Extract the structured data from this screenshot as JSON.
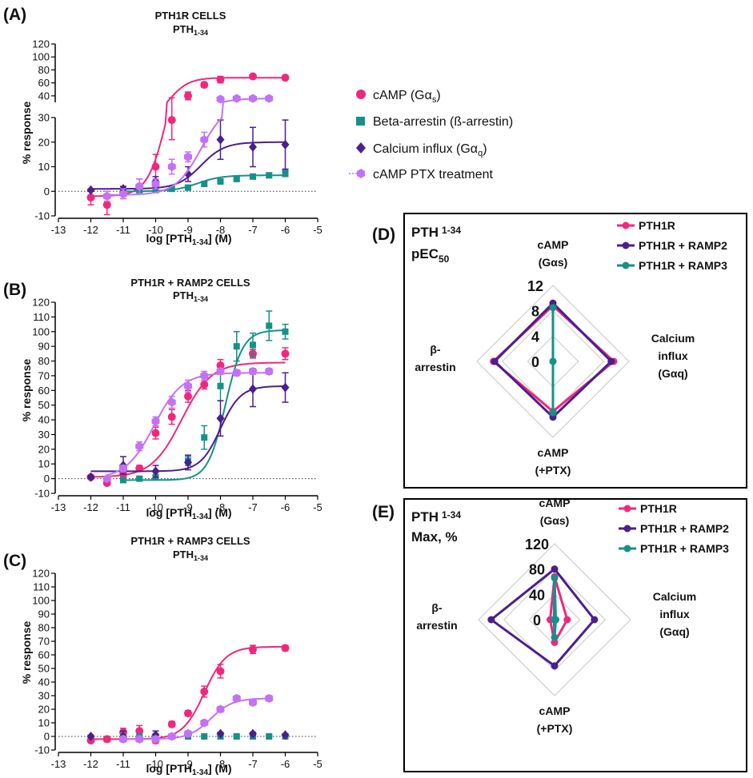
{
  "figure": {
    "panels": {
      "A": {
        "label": "(A)",
        "title": "PTH1R CELLS"
      },
      "B": {
        "label": "(B)",
        "title": "PTH1R + RAMP2 CELLS"
      },
      "C": {
        "label": "(C)",
        "title": "PTH1R + RAMP3 CELLS"
      },
      "D": {
        "label": "(D)"
      },
      "E": {
        "label": "(E)"
      }
    }
  },
  "colors": {
    "pink": "#f0287c",
    "teal": "#15918a",
    "purple": "#4b1f8c",
    "lilac": "#c471f5"
  },
  "legend_main": [
    {
      "label": "cAMP (Gα",
      "sub": "s",
      "tail": ")",
      "color": "#f0287c",
      "marker": "circle"
    },
    {
      "label": "Beta-arrestin (ß-arrestin)",
      "sub": "",
      "tail": "",
      "color": "#15918a",
      "marker": "square"
    },
    {
      "label": "Calcium influx (Gα",
      "sub": "q",
      "tail": ")",
      "color": "#4b1f8c",
      "marker": "diamond"
    },
    {
      "label": "cAMP PTX treatment",
      "sub": "",
      "tail": "",
      "color": "#c471f5",
      "marker": "hexagon"
    }
  ],
  "chart_data": [
    {
      "id": "A",
      "type": "scatter",
      "title": "PTH1R CELLS",
      "subtitle": "PTH1-34",
      "xlabel": "log [PTH1-34] (M)",
      "ylabel": "% response",
      "xlim": [
        -13,
        -5
      ],
      "ylim_lower": [
        -10,
        30
      ],
      "ylim_upper": [
        30,
        120
      ],
      "xticks": [
        "-13",
        "-12",
        "-11",
        "-10",
        "-9",
        "-8",
        "-7",
        "-6",
        "-5"
      ],
      "yticks_lower": [
        "-10",
        "0",
        "10",
        "20",
        "30"
      ],
      "yticks_upper": [
        "40",
        "60",
        "80",
        "100",
        "120"
      ],
      "series": [
        {
          "name": "cAMP (Gαs)",
          "color": "pink",
          "marker": "circle",
          "x": [
            -12,
            -11.5,
            -11,
            -10.5,
            -10,
            -9.5,
            -9,
            -8.5,
            -8,
            -7,
            -6
          ],
          "y": [
            -2.5,
            -5.5,
            -1,
            2,
            10,
            29,
            40,
            57,
            65,
            70,
            68
          ],
          "err": [
            3,
            4,
            2,
            3,
            5,
            8,
            6,
            4,
            5,
            3,
            2
          ],
          "fit": {
            "bottom": -2,
            "top": 68,
            "ec50": -9.6,
            "h": 1.4
          }
        },
        {
          "name": "Beta-arrestin (ß-arrestin)",
          "color": "teal",
          "marker": "square",
          "x": [
            -11,
            -10.5,
            -10,
            -9.5,
            -9,
            -8.5,
            -8,
            -7.5,
            -7,
            -6.5,
            -6
          ],
          "y": [
            0,
            0,
            0.5,
            1,
            1.5,
            3,
            4,
            5,
            6,
            6.5,
            7.5
          ],
          "err": [
            0.5,
            0.5,
            0.5,
            0.5,
            0.5,
            0.8,
            0.8,
            0.8,
            1,
            1,
            1.5
          ],
          "fit": {
            "bottom": 0,
            "top": 6.5,
            "ec50": -8.7,
            "h": 1.2
          }
        },
        {
          "name": "Calcium influx (Gαq)",
          "color": "purple",
          "marker": "diamond",
          "x": [
            -12,
            -11,
            -10,
            -9,
            -8,
            -7,
            -6
          ],
          "y": [
            0.5,
            1,
            4,
            7,
            21,
            18,
            19
          ],
          "err": [
            0.5,
            1,
            2,
            3,
            8,
            8,
            10
          ],
          "fit": {
            "bottom": 1,
            "top": 20,
            "ec50": -8.6,
            "h": 1.2
          }
        },
        {
          "name": "cAMP PTX treatment",
          "color": "lilac",
          "marker": "hexagon",
          "x": [
            -11.5,
            -11,
            -10.5,
            -10,
            -9.5,
            -9,
            -8.5,
            -8,
            -7.5,
            -7,
            -6.5
          ],
          "y": [
            -2,
            -1,
            2,
            3,
            10,
            14,
            21,
            35,
            36,
            36,
            36
          ],
          "err": [
            2,
            2,
            3,
            2,
            3,
            2,
            3,
            2,
            1,
            1,
            1
          ],
          "fit": {
            "bottom": -1.5,
            "top": 36,
            "ec50": -8.6,
            "h": 1.1
          }
        }
      ]
    },
    {
      "id": "B",
      "type": "scatter",
      "title": "PTH1R + RAMP2 CELLS",
      "subtitle": "PTH1-34",
      "xlabel": "log [PTH1-34] (M)",
      "ylabel": "% response",
      "xlim": [
        -13,
        -5
      ],
      "ylim": [
        -10,
        120
      ],
      "xticks": [
        "-13",
        "-12",
        "-11",
        "-10",
        "-9",
        "-8",
        "-7",
        "-6",
        "-5"
      ],
      "yticks": [
        "-10",
        "0",
        "10",
        "20",
        "30",
        "40",
        "50",
        "60",
        "70",
        "80",
        "90",
        "100",
        "110",
        "120"
      ],
      "series": [
        {
          "name": "cAMP (Gαs)",
          "color": "pink",
          "marker": "circle",
          "x": [
            -12,
            -11.5,
            -11,
            -10.5,
            -10,
            -9.5,
            -9,
            -8.5,
            -8,
            -7,
            -6
          ],
          "y": [
            1,
            -3,
            3,
            7,
            31,
            42,
            56,
            64,
            77,
            85,
            85
          ],
          "err": [
            1,
            1,
            2,
            2,
            4,
            5,
            4,
            3,
            4,
            3,
            4
          ],
          "fit": {
            "bottom": 1,
            "top": 79,
            "ec50": -9.2,
            "h": 0.95
          }
        },
        {
          "name": "Beta-arrestin (ß-arrestin)",
          "color": "teal",
          "marker": "square",
          "x": [
            -11,
            -10.5,
            -10,
            -9,
            -8.5,
            -8,
            -7.5,
            -7,
            -6.5,
            -6
          ],
          "y": [
            -1,
            0,
            1,
            12,
            28,
            63,
            90,
            91,
            104,
            100
          ],
          "err": [
            1,
            1,
            1,
            3,
            8,
            10,
            10,
            8,
            10,
            5
          ],
          "fit": {
            "bottom": -1,
            "top": 101,
            "ec50": -7.85,
            "h": 1.6
          }
        },
        {
          "name": "Calcium influx (Gαq)",
          "color": "purple",
          "marker": "diamond",
          "x": [
            -12,
            -11,
            -10,
            -9,
            -8,
            -7,
            -6
          ],
          "y": [
            1,
            9,
            5,
            11,
            41,
            61,
            62
          ],
          "err": [
            1,
            6,
            4,
            5,
            12,
            12,
            10
          ],
          "fit": {
            "bottom": 5,
            "top": 63,
            "ec50": -8.0,
            "h": 1.4
          }
        },
        {
          "name": "cAMP PTX treatment",
          "color": "lilac",
          "marker": "hexagon",
          "x": [
            -11.5,
            -11,
            -10.5,
            -10,
            -9.5,
            -9,
            -8.5,
            -8,
            -7.5,
            -7,
            -6.5
          ],
          "y": [
            0,
            7,
            22,
            39,
            52,
            63,
            70,
            73,
            72,
            73,
            73
          ],
          "err": [
            1,
            2,
            3,
            3,
            4,
            4,
            3,
            2,
            2,
            2,
            2
          ],
          "fit": {
            "bottom": 0,
            "top": 72,
            "ec50": -10.05,
            "h": 1.0
          }
        }
      ]
    },
    {
      "id": "C",
      "type": "scatter",
      "title": "PTH1R + RAMP3 CELLS",
      "subtitle": "PTH1-34",
      "xlabel": "log [PTH1-34] (M)",
      "ylabel": "% response",
      "xlim": [
        -13,
        -5
      ],
      "ylim": [
        -10,
        120
      ],
      "xticks": [
        "-13",
        "-12",
        "-11",
        "-10",
        "-9",
        "-8",
        "-7",
        "-6",
        "-5"
      ],
      "yticks": [
        "-10",
        "0",
        "10",
        "20",
        "30",
        "40",
        "50",
        "60",
        "70",
        "80",
        "90",
        "100",
        "110",
        "120"
      ],
      "series": [
        {
          "name": "cAMP (Gαs)",
          "color": "pink",
          "marker": "circle",
          "x": [
            -12,
            -11.5,
            -11,
            -10.5,
            -10,
            -9.5,
            -9,
            -8.5,
            -8,
            -7,
            -6
          ],
          "y": [
            -3,
            -2,
            3,
            4,
            -3,
            9,
            17,
            33,
            48,
            64,
            65
          ],
          "err": [
            1,
            2,
            3,
            4,
            2,
            2,
            2,
            4,
            5,
            3,
            2
          ],
          "fit": {
            "bottom": -2,
            "top": 66,
            "ec50": -8.5,
            "h": 1.3
          }
        },
        {
          "name": "Beta-arrestin (ß-arrestin)",
          "color": "teal",
          "marker": "square",
          "x": [
            -11,
            -10.5,
            -10,
            -9.5,
            -9,
            -8.5,
            -8,
            -7.5,
            -7,
            -6.5,
            -6
          ],
          "y": [
            0,
            0,
            0,
            0,
            0,
            0,
            0,
            0,
            0,
            0,
            0
          ],
          "err": [
            0.5,
            0.5,
            0.5,
            0.5,
            0.5,
            0.5,
            0.5,
            0.5,
            0.5,
            0.5,
            0.5
          ],
          "fit": null
        },
        {
          "name": "Calcium influx (Gαq)",
          "color": "purple",
          "marker": "diamond",
          "x": [
            -12,
            -11,
            -10,
            -9,
            -8,
            -7,
            -6
          ],
          "y": [
            0,
            0,
            1,
            2,
            2,
            2,
            1
          ],
          "err": [
            1,
            4,
            3,
            2,
            1,
            1,
            1
          ],
          "fit": null
        },
        {
          "name": "cAMP PTX treatment",
          "color": "lilac",
          "marker": "hexagon",
          "x": [
            -11,
            -10.5,
            -10,
            -9.5,
            -9,
            -8.5,
            -8,
            -7.5,
            -7,
            -6.5
          ],
          "y": [
            -2,
            -2,
            -2,
            0,
            2,
            10,
            20,
            28,
            25,
            28
          ],
          "err": [
            2,
            2,
            2,
            2,
            2,
            2,
            2,
            2,
            2,
            2
          ],
          "fit": {
            "bottom": -2,
            "top": 28,
            "ec50": -8.3,
            "h": 1.3
          }
        }
      ]
    },
    {
      "id": "D",
      "type": "radar",
      "title_main": "PTH",
      "title_sub": "1-34",
      "metric": "pEC",
      "metric_sub": "50",
      "axes": [
        {
          "label_lines": [
            "cAMP",
            "(Gαs)"
          ]
        },
        {
          "label_lines": [
            "Calcium",
            "influx",
            "(Gαq)"
          ]
        },
        {
          "label_lines": [
            "cAMP",
            "(+PTX)"
          ]
        },
        {
          "label_lines": [
            "β-",
            "arrestin"
          ]
        }
      ],
      "rmax": 12,
      "ticks": [
        "0",
        "4",
        "8",
        "12"
      ],
      "tick_values": [
        0,
        4,
        8,
        12
      ],
      "series": [
        {
          "name": "PTH1R",
          "color": "pink",
          "values": [
            8.8,
            9.6,
            7.9,
            9.4
          ]
        },
        {
          "name": "PTH1R + RAMP2",
          "color": "purple",
          "values": [
            9.2,
            9.2,
            8.8,
            9.2
          ]
        },
        {
          "name": "PTH1R + RAMP3",
          "color": "teal",
          "values": [
            8.5,
            0,
            8.1,
            0
          ]
        }
      ]
    },
    {
      "id": "E",
      "type": "radar",
      "title_main": "PTH",
      "title_sub": "1-34",
      "metric": "Max, %",
      "metric_sub": "",
      "axes": [
        {
          "label_lines": [
            "cAMP",
            "(Gαs)"
          ]
        },
        {
          "label_lines": [
            "Calcium",
            "influx",
            "(Gαq)"
          ]
        },
        {
          "label_lines": [
            "cAMP",
            "(+PTX)"
          ]
        },
        {
          "label_lines": [
            "β-",
            "arrestin"
          ]
        }
      ],
      "rmax": 120,
      "ticks": [
        "0",
        "40",
        "80",
        "120"
      ],
      "tick_values": [
        0,
        40,
        80,
        120
      ],
      "series": [
        {
          "name": "PTH1R",
          "color": "pink",
          "values": [
            68,
            20,
            36,
            7
          ]
        },
        {
          "name": "PTH1R + RAMP2",
          "color": "purple",
          "values": [
            80,
            63,
            73,
            100
          ]
        },
        {
          "name": "PTH1R + RAMP3",
          "color": "teal",
          "values": [
            66,
            2,
            28,
            1
          ]
        }
      ]
    }
  ]
}
